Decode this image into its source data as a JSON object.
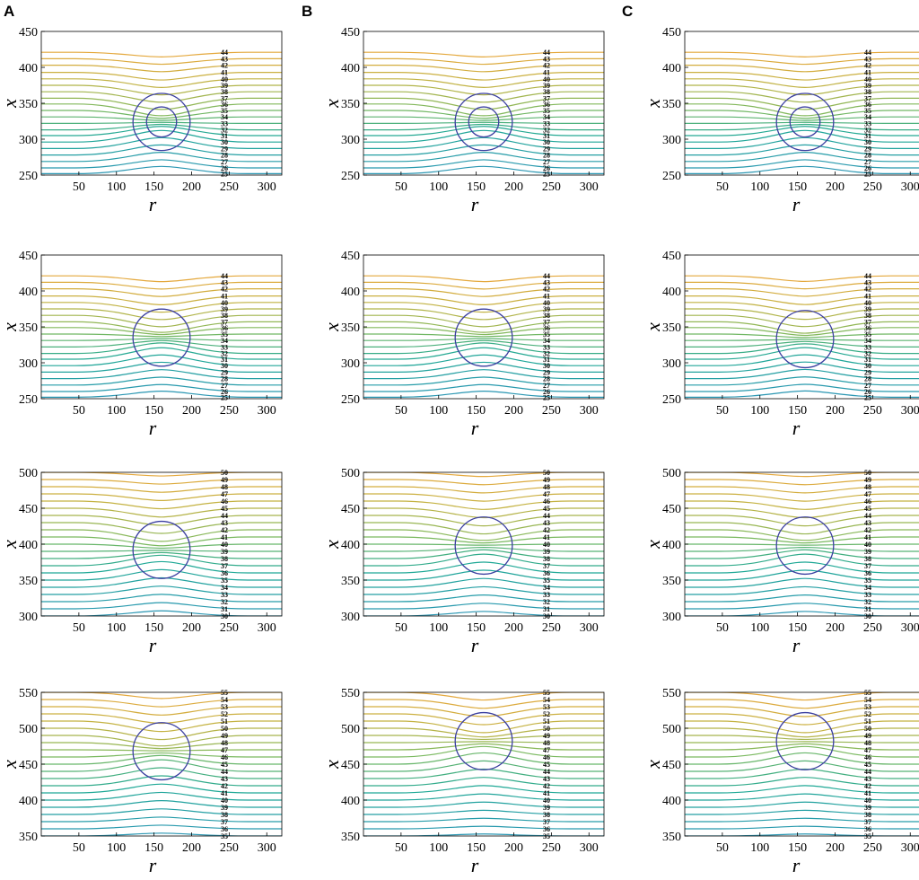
{
  "figure": {
    "column_labels": [
      "A",
      "B",
      "C"
    ]
  },
  "chart_data": [
    {
      "type": "line",
      "panel": "A1",
      "row": 1,
      "column": "A",
      "xlabel": "r",
      "ylabel": "x",
      "xlim": [
        0,
        320
      ],
      "ylim": [
        250,
        450
      ],
      "xticks": [
        50,
        100,
        150,
        200,
        250,
        300
      ],
      "yticks": [
        250,
        300,
        350,
        400,
        450
      ],
      "contour_levels": [
        25,
        26,
        27,
        28,
        29,
        30,
        31,
        32,
        33,
        34,
        35,
        36,
        37,
        38,
        39,
        40,
        41,
        42,
        43,
        44
      ],
      "level_positions": [
        252,
        260,
        269,
        278,
        287,
        296,
        305,
        313,
        322,
        331,
        340,
        349,
        357,
        366,
        375,
        384,
        393,
        403,
        412,
        421
      ],
      "bubble": {
        "center_r": 160,
        "center_x": 324,
        "radius": 38,
        "inner_radius": 20
      },
      "grid": false,
      "colormap": "viridis"
    },
    {
      "type": "line",
      "panel": "B1",
      "row": 1,
      "column": "B",
      "xlabel": "r",
      "ylabel": "x",
      "xlim": [
        0,
        320
      ],
      "ylim": [
        250,
        450
      ],
      "xticks": [
        50,
        100,
        150,
        200,
        250,
        300
      ],
      "yticks": [
        250,
        300,
        350,
        400,
        450
      ],
      "contour_levels": [
        25,
        26,
        27,
        28,
        29,
        30,
        31,
        32,
        33,
        34,
        35,
        36,
        37,
        38,
        39,
        40,
        41,
        42,
        43,
        44
      ],
      "level_positions": [
        252,
        260,
        269,
        278,
        287,
        296,
        305,
        313,
        322,
        331,
        340,
        349,
        357,
        366,
        375,
        384,
        393,
        403,
        412,
        421
      ],
      "bubble": {
        "center_r": 160,
        "center_x": 324,
        "radius": 38,
        "inner_radius": 20
      },
      "grid": false,
      "colormap": "viridis"
    },
    {
      "type": "line",
      "panel": "C1",
      "row": 1,
      "column": "C",
      "xlabel": "r",
      "ylabel": "x",
      "xlim": [
        0,
        320
      ],
      "ylim": [
        250,
        450
      ],
      "xticks": [
        50,
        100,
        150,
        200,
        250,
        300
      ],
      "yticks": [
        250,
        300,
        350,
        400,
        450
      ],
      "contour_levels": [
        25,
        26,
        27,
        28,
        29,
        30,
        31,
        32,
        33,
        34,
        35,
        36,
        37,
        38,
        39,
        40,
        41,
        42,
        43,
        44
      ],
      "level_positions": [
        252,
        260,
        269,
        278,
        287,
        296,
        305,
        313,
        322,
        331,
        340,
        349,
        357,
        366,
        375,
        384,
        393,
        403,
        412,
        421
      ],
      "bubble": {
        "center_r": 160,
        "center_x": 324,
        "radius": 38,
        "inner_radius": 20
      },
      "grid": false,
      "colormap": "viridis"
    },
    {
      "type": "line",
      "panel": "A2",
      "row": 2,
      "column": "A",
      "xlabel": "r",
      "ylabel": "x",
      "xlim": [
        0,
        320
      ],
      "ylim": [
        250,
        450
      ],
      "xticks": [
        50,
        100,
        150,
        200,
        250,
        300
      ],
      "yticks": [
        250,
        300,
        350,
        400,
        450
      ],
      "contour_levels": [
        25,
        26,
        27,
        28,
        29,
        30,
        31,
        32,
        33,
        34,
        35,
        36,
        37,
        38,
        39,
        40,
        41,
        42,
        43,
        44
      ],
      "level_positions": [
        252,
        260,
        269,
        278,
        287,
        296,
        305,
        313,
        322,
        331,
        340,
        349,
        357,
        366,
        375,
        384,
        393,
        403,
        412,
        421
      ],
      "bubble": {
        "center_r": 160,
        "center_x": 335,
        "radius": 38,
        "inner_radius": 0
      },
      "grid": false,
      "colormap": "viridis"
    },
    {
      "type": "line",
      "panel": "B2",
      "row": 2,
      "column": "B",
      "xlabel": "r",
      "ylabel": "x",
      "xlim": [
        0,
        320
      ],
      "ylim": [
        250,
        450
      ],
      "xticks": [
        50,
        100,
        150,
        200,
        250,
        300
      ],
      "yticks": [
        250,
        300,
        350,
        400,
        450
      ],
      "contour_levels": [
        25,
        26,
        27,
        28,
        29,
        30,
        31,
        32,
        33,
        34,
        35,
        36,
        37,
        38,
        39,
        40,
        41,
        42,
        43,
        44
      ],
      "level_positions": [
        252,
        260,
        269,
        278,
        287,
        296,
        305,
        313,
        322,
        331,
        340,
        349,
        357,
        366,
        375,
        384,
        393,
        403,
        412,
        421
      ],
      "bubble": {
        "center_r": 160,
        "center_x": 335,
        "radius": 38,
        "inner_radius": 0
      },
      "grid": false,
      "colormap": "viridis"
    },
    {
      "type": "line",
      "panel": "C2",
      "row": 2,
      "column": "C",
      "xlabel": "r",
      "ylabel": "x",
      "xlim": [
        0,
        320
      ],
      "ylim": [
        250,
        450
      ],
      "xticks": [
        50,
        100,
        150,
        200,
        250,
        300
      ],
      "yticks": [
        250,
        300,
        350,
        400,
        450
      ],
      "contour_levels": [
        25,
        26,
        27,
        28,
        29,
        30,
        31,
        32,
        33,
        34,
        35,
        36,
        37,
        38,
        39,
        40,
        41,
        42,
        43,
        44
      ],
      "level_positions": [
        252,
        260,
        269,
        278,
        287,
        296,
        305,
        313,
        322,
        331,
        340,
        349,
        357,
        366,
        375,
        384,
        393,
        403,
        412,
        421
      ],
      "bubble": {
        "center_r": 160,
        "center_x": 333,
        "radius": 38,
        "inner_radius": 0
      },
      "grid": false,
      "colormap": "viridis"
    },
    {
      "type": "line",
      "panel": "A3",
      "row": 3,
      "column": "A",
      "xlabel": "r",
      "ylabel": "x",
      "xlim": [
        0,
        320
      ],
      "ylim": [
        300,
        500
      ],
      "xticks": [
        50,
        100,
        150,
        200,
        250,
        300
      ],
      "yticks": [
        300,
        350,
        400,
        450,
        500
      ],
      "contour_levels": [
        30,
        31,
        32,
        33,
        34,
        35,
        36,
        37,
        38,
        39,
        40,
        41,
        42,
        43,
        44,
        45,
        46,
        47,
        48,
        49,
        50
      ],
      "level_positions": [
        300,
        310,
        320,
        330,
        340,
        350,
        360,
        370,
        380,
        390,
        400,
        410,
        420,
        430,
        440,
        450,
        460,
        470,
        480,
        490,
        500
      ],
      "bubble": {
        "center_r": 160,
        "center_x": 392,
        "radius": 38,
        "inner_radius": 0
      },
      "grid": false,
      "colormap": "viridis"
    },
    {
      "type": "line",
      "panel": "B3",
      "row": 3,
      "column": "B",
      "xlabel": "r",
      "ylabel": "x",
      "xlim": [
        0,
        320
      ],
      "ylim": [
        300,
        500
      ],
      "xticks": [
        50,
        100,
        150,
        200,
        250,
        300
      ],
      "yticks": [
        300,
        350,
        400,
        450,
        500
      ],
      "contour_levels": [
        30,
        31,
        32,
        33,
        34,
        35,
        36,
        37,
        38,
        39,
        40,
        41,
        42,
        43,
        44,
        45,
        46,
        47,
        48,
        49,
        50
      ],
      "level_positions": [
        300,
        310,
        320,
        330,
        340,
        350,
        360,
        370,
        380,
        390,
        400,
        410,
        420,
        430,
        440,
        450,
        460,
        470,
        480,
        490,
        500
      ],
      "bubble": {
        "center_r": 160,
        "center_x": 398,
        "radius": 38,
        "inner_radius": 0
      },
      "grid": false,
      "colormap": "viridis"
    },
    {
      "type": "line",
      "panel": "C3",
      "row": 3,
      "column": "C",
      "xlabel": "r",
      "ylabel": "x",
      "xlim": [
        0,
        320
      ],
      "ylim": [
        300,
        500
      ],
      "xticks": [
        50,
        100,
        150,
        200,
        250,
        300
      ],
      "yticks": [
        300,
        350,
        400,
        450,
        500
      ],
      "contour_levels": [
        30,
        31,
        32,
        33,
        34,
        35,
        36,
        37,
        38,
        39,
        40,
        41,
        42,
        43,
        44,
        45,
        46,
        47,
        48,
        49,
        50
      ],
      "level_positions": [
        300,
        310,
        320,
        330,
        340,
        350,
        360,
        370,
        380,
        390,
        400,
        410,
        420,
        430,
        440,
        450,
        460,
        470,
        480,
        490,
        500
      ],
      "bubble": {
        "center_r": 160,
        "center_x": 398,
        "radius": 38,
        "inner_radius": 0
      },
      "grid": false,
      "colormap": "viridis"
    },
    {
      "type": "line",
      "panel": "A4",
      "row": 4,
      "column": "A",
      "xlabel": "r",
      "ylabel": "x",
      "xlim": [
        0,
        320
      ],
      "ylim": [
        350,
        550
      ],
      "xticks": [
        50,
        100,
        150,
        200,
        250,
        300
      ],
      "yticks": [
        350,
        400,
        450,
        500,
        550
      ],
      "contour_levels": [
        35,
        36,
        37,
        38,
        39,
        40,
        41,
        42,
        43,
        44,
        45,
        46,
        47,
        48,
        49,
        50,
        51,
        52,
        53,
        54,
        55
      ],
      "level_positions": [
        350,
        360,
        370,
        380,
        390,
        400,
        410,
        420,
        430,
        440,
        450,
        460,
        470,
        480,
        490,
        500,
        510,
        520,
        530,
        540,
        550
      ],
      "bubble": {
        "center_r": 160,
        "center_x": 468,
        "radius": 38,
        "inner_radius": 0
      },
      "grid": false,
      "colormap": "viridis"
    },
    {
      "type": "line",
      "panel": "B4",
      "row": 4,
      "column": "B",
      "xlabel": "r",
      "ylabel": "x",
      "xlim": [
        0,
        320
      ],
      "ylim": [
        350,
        550
      ],
      "xticks": [
        50,
        100,
        150,
        200,
        250,
        300
      ],
      "yticks": [
        350,
        400,
        450,
        500,
        550
      ],
      "contour_levels": [
        35,
        36,
        37,
        38,
        39,
        40,
        41,
        42,
        43,
        44,
        45,
        46,
        47,
        48,
        49,
        50,
        51,
        52,
        53,
        54,
        55
      ],
      "level_positions": [
        350,
        360,
        370,
        380,
        390,
        400,
        410,
        420,
        430,
        440,
        450,
        460,
        470,
        480,
        490,
        500,
        510,
        520,
        530,
        540,
        550
      ],
      "bubble": {
        "center_r": 160,
        "center_x": 482,
        "radius": 38,
        "inner_radius": 0
      },
      "grid": false,
      "colormap": "viridis"
    },
    {
      "type": "line",
      "panel": "C4",
      "row": 4,
      "column": "C",
      "xlabel": "r",
      "ylabel": "x",
      "xlim": [
        0,
        320
      ],
      "ylim": [
        350,
        550
      ],
      "xticks": [
        50,
        100,
        150,
        200,
        250,
        300
      ],
      "yticks": [
        350,
        400,
        450,
        500,
        550
      ],
      "contour_levels": [
        35,
        36,
        37,
        38,
        39,
        40,
        41,
        42,
        43,
        44,
        45,
        46,
        47,
        48,
        49,
        50,
        51,
        52,
        53,
        54,
        55
      ],
      "level_positions": [
        350,
        360,
        370,
        380,
        390,
        400,
        410,
        420,
        430,
        440,
        450,
        460,
        470,
        480,
        490,
        500,
        510,
        520,
        530,
        540,
        550
      ],
      "bubble": {
        "center_r": 160,
        "center_x": 482,
        "radius": 38,
        "inner_radius": 0
      },
      "grid": false,
      "colormap": "viridis"
    }
  ]
}
